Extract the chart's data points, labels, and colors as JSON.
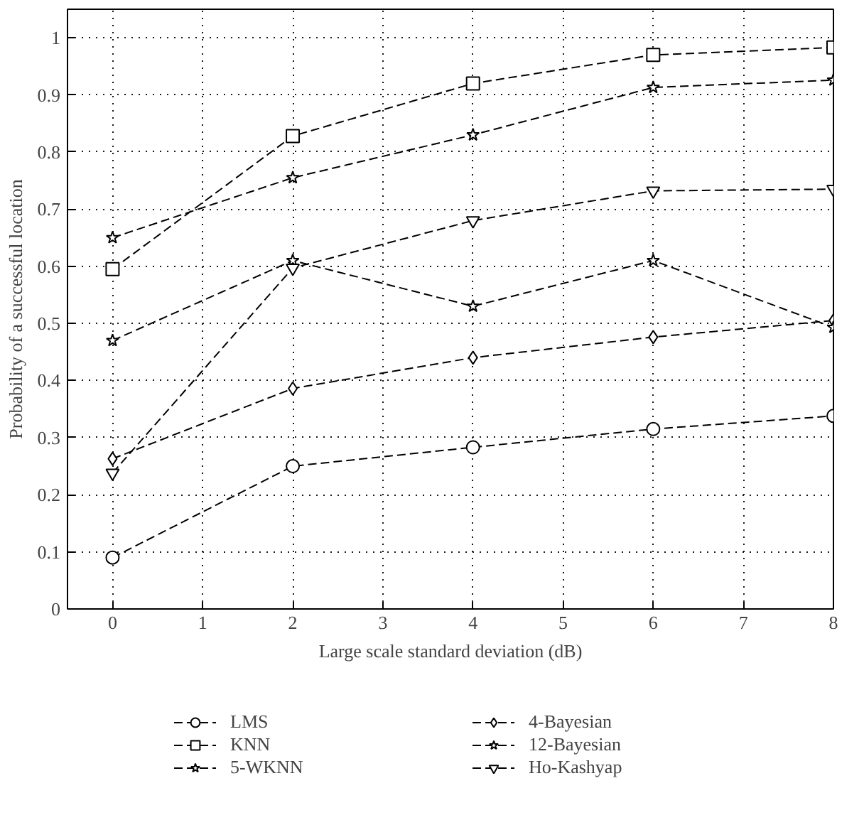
{
  "chart_data": {
    "type": "line",
    "xlabel": "Large scale standard deviation (dB)",
    "ylabel": "Probability of a successful location",
    "x": [
      0,
      2,
      4,
      6,
      8
    ],
    "xlim": [
      -0.5,
      8
    ],
    "xticks": [
      0,
      1,
      2,
      3,
      4,
      5,
      6,
      7,
      8
    ],
    "ylim": [
      0,
      1.05
    ],
    "yticks": [
      0,
      0.1,
      0.2,
      0.3,
      0.4,
      0.5,
      0.6,
      0.7,
      0.8,
      0.9,
      1
    ],
    "grid": true,
    "legend": "bottom",
    "line_style": "dashed",
    "series": [
      {
        "name": "LMS",
        "color": "#000000",
        "marker": "circle",
        "values": [
          0.09,
          0.25,
          0.283,
          0.315,
          0.338
        ]
      },
      {
        "name": "KNN",
        "color": "#000000",
        "marker": "square",
        "values": [
          0.595,
          0.828,
          0.92,
          0.97,
          0.983
        ]
      },
      {
        "name": "5-WKNN",
        "color": "#000000",
        "marker": "star",
        "values": [
          0.65,
          0.755,
          0.83,
          0.913,
          0.926
        ]
      },
      {
        "name": "4-Bayesian",
        "color": "#000000",
        "marker": "diamond",
        "values": [
          0.263,
          0.386,
          0.44,
          0.476,
          0.505
        ]
      },
      {
        "name": "12-Bayesian",
        "color": "#000000",
        "marker": "star",
        "values": [
          0.47,
          0.61,
          0.53,
          0.61,
          0.493
        ]
      },
      {
        "name": "Ho-Kashyap",
        "color": "#000000",
        "marker": "triangle",
        "values": [
          0.238,
          0.597,
          0.68,
          0.732,
          0.735
        ]
      }
    ]
  }
}
